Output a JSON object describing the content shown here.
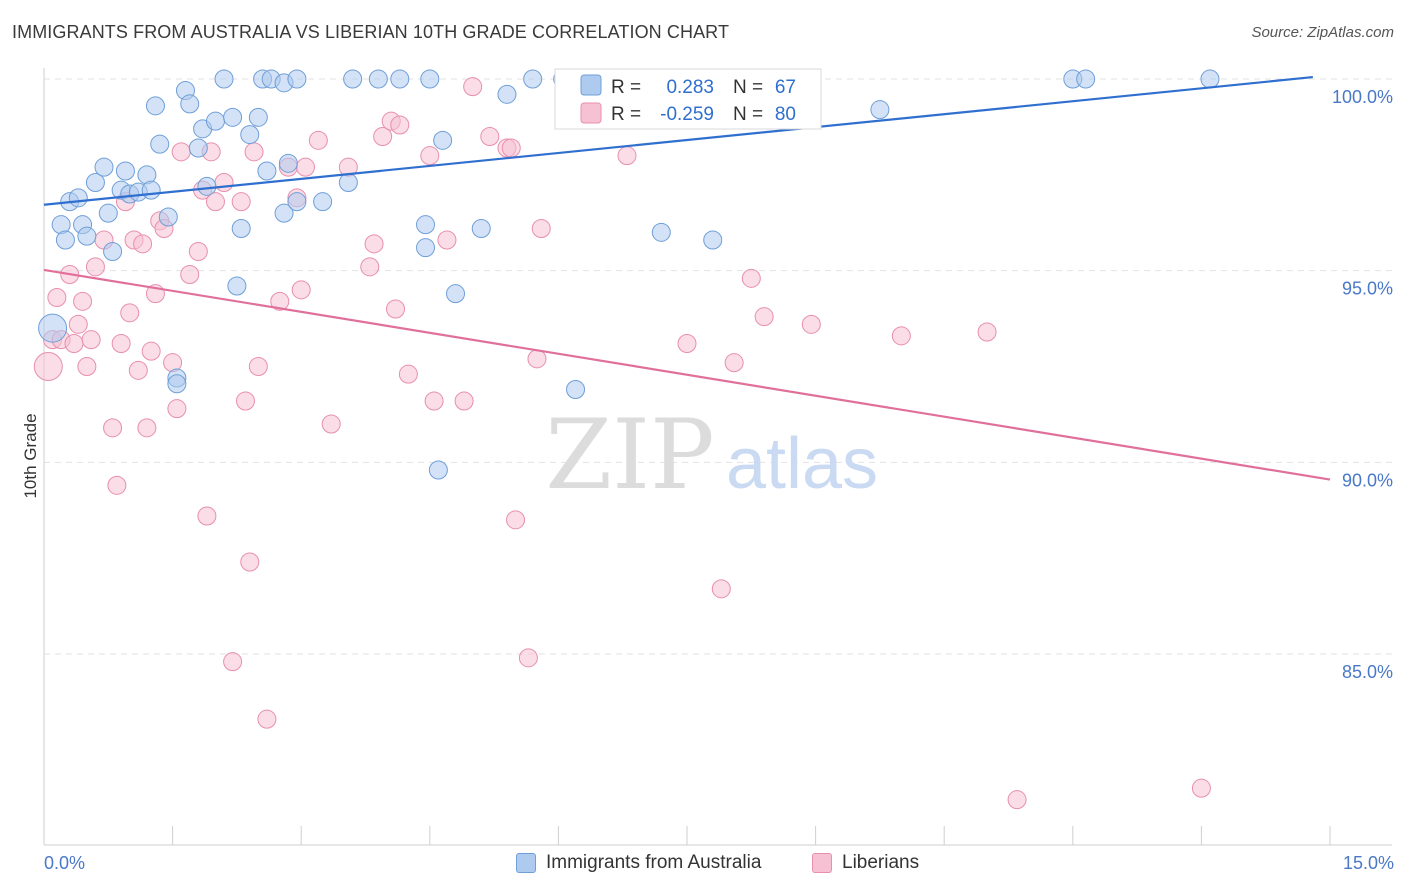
{
  "header": {
    "title": "IMMIGRANTS FROM AUSTRALIA VS LIBERIAN 10TH GRADE CORRELATION CHART",
    "source": "Source: ZipAtlas.com"
  },
  "watermark": {
    "zip": "ZIP",
    "atlas": "atlas"
  },
  "colors": {
    "blue_fill": "#aecbef",
    "blue_stroke": "#6f9fd8",
    "blue_line": "#2f6fcf",
    "pink_fill": "#f6c1d3",
    "pink_stroke": "#e88fae",
    "pink_line": "#e0709a",
    "tick_label": "#4a78c8",
    "grid": "#e2e2e2"
  },
  "stats_legend": {
    "rows": [
      {
        "r_label": "R =",
        "r_value": "0.283",
        "n_label": "N =",
        "n_value": "67"
      },
      {
        "r_label": "R =",
        "r_value": "-0.259",
        "n_label": "N =",
        "n_value": "80"
      }
    ]
  },
  "chart_data": {
    "type": "scatter",
    "title": "IMMIGRANTS FROM AUSTRALIA VS LIBERIAN 10TH GRADE CORRELATION CHART",
    "xlabel": "",
    "ylabel": "10th Grade",
    "xlim": [
      0,
      15
    ],
    "ylim": [
      80,
      100.7
    ],
    "x_tick_labels": [
      "0.0%",
      "15.0%"
    ],
    "y_ticks": [
      85,
      90,
      95,
      100
    ],
    "y_tick_labels": [
      "85.0%",
      "90.0%",
      "95.0%",
      "100.0%"
    ],
    "grid": "horizontal dashed",
    "legend_position": "top-center (stats) and bottom (series)",
    "series": [
      {
        "name": "Immigrants from Australia",
        "color": "#aecbef",
        "trend": {
          "x": [
            0,
            14.8
          ],
          "y": [
            96.72,
            100.05
          ]
        },
        "points": [
          [
            0.1,
            93.5,
            2
          ],
          [
            0.2,
            96.2,
            1
          ],
          [
            0.25,
            95.8,
            1
          ],
          [
            0.3,
            96.8,
            1
          ],
          [
            0.4,
            96.9,
            1
          ],
          [
            0.45,
            96.2,
            1
          ],
          [
            0.5,
            95.9,
            1
          ],
          [
            0.6,
            97.3,
            1
          ],
          [
            0.7,
            97.7,
            1
          ],
          [
            0.75,
            96.5,
            1
          ],
          [
            0.8,
            95.5,
            1
          ],
          [
            0.9,
            97.1,
            1
          ],
          [
            0.95,
            97.6,
            1
          ],
          [
            1.0,
            97.0,
            1
          ],
          [
            1.1,
            97.05,
            1
          ],
          [
            1.2,
            97.5,
            1
          ],
          [
            1.25,
            97.1,
            1
          ],
          [
            1.3,
            99.3,
            1
          ],
          [
            1.35,
            98.3,
            1
          ],
          [
            1.45,
            96.4,
            1
          ],
          [
            1.55,
            92.2,
            1
          ],
          [
            1.55,
            92.05,
            1
          ],
          [
            1.65,
            99.7,
            1
          ],
          [
            1.7,
            99.35,
            1
          ],
          [
            1.8,
            98.2,
            1
          ],
          [
            1.85,
            98.7,
            1
          ],
          [
            1.9,
            97.2,
            1
          ],
          [
            2.0,
            98.9,
            1
          ],
          [
            2.1,
            100.0,
            1
          ],
          [
            2.2,
            99.0,
            1
          ],
          [
            2.25,
            94.6,
            1
          ],
          [
            2.3,
            96.1,
            1
          ],
          [
            2.4,
            98.55,
            1
          ],
          [
            2.5,
            99.0,
            1
          ],
          [
            2.55,
            100.0,
            1
          ],
          [
            2.6,
            97.6,
            1
          ],
          [
            2.65,
            100.0,
            1
          ],
          [
            2.8,
            96.5,
            1
          ],
          [
            2.8,
            99.9,
            1
          ],
          [
            2.85,
            97.8,
            1
          ],
          [
            2.95,
            96.8,
            1
          ],
          [
            2.95,
            100.0,
            1
          ],
          [
            3.25,
            96.8,
            1
          ],
          [
            3.55,
            97.3,
            1
          ],
          [
            3.6,
            100.0,
            1
          ],
          [
            3.9,
            100.0,
            1
          ],
          [
            4.15,
            100.0,
            1
          ],
          [
            4.45,
            95.6,
            1
          ],
          [
            4.45,
            96.2,
            1
          ],
          [
            4.5,
            100.0,
            1
          ],
          [
            4.6,
            89.8,
            1
          ],
          [
            4.65,
            98.4,
            1
          ],
          [
            4.8,
            94.4,
            1
          ],
          [
            5.1,
            96.1,
            1
          ],
          [
            5.4,
            99.6,
            1
          ],
          [
            5.7,
            100.0,
            1
          ],
          [
            6.05,
            100.0,
            1
          ],
          [
            6.2,
            91.9,
            1
          ],
          [
            6.45,
            99.6,
            1
          ],
          [
            7.2,
            96.0,
            1
          ],
          [
            7.8,
            95.8,
            1
          ],
          [
            9.75,
            99.2,
            1
          ],
          [
            12.0,
            100.0,
            1
          ],
          [
            12.15,
            100.0,
            1
          ],
          [
            13.6,
            100.0,
            1
          ]
        ]
      },
      {
        "name": "Liberians",
        "color": "#f6c1d3",
        "trend": {
          "x": [
            0,
            15
          ],
          "y": [
            95.02,
            89.55
          ]
        },
        "points": [
          [
            0.05,
            92.5,
            2
          ],
          [
            0.1,
            93.2,
            1
          ],
          [
            0.15,
            94.3,
            1
          ],
          [
            0.2,
            93.2,
            1
          ],
          [
            0.3,
            94.9,
            1
          ],
          [
            0.35,
            93.1,
            1
          ],
          [
            0.4,
            93.6,
            1
          ],
          [
            0.45,
            94.2,
            1
          ],
          [
            0.5,
            92.5,
            1
          ],
          [
            0.55,
            93.2,
            1
          ],
          [
            0.6,
            95.1,
            1
          ],
          [
            0.7,
            95.8,
            1
          ],
          [
            0.8,
            90.9,
            1
          ],
          [
            0.85,
            89.4,
            1
          ],
          [
            0.9,
            93.1,
            1
          ],
          [
            0.95,
            96.8,
            1
          ],
          [
            1.0,
            93.9,
            1
          ],
          [
            1.05,
            95.8,
            1
          ],
          [
            1.1,
            92.4,
            1
          ],
          [
            1.15,
            95.7,
            1
          ],
          [
            1.2,
            90.9,
            1
          ],
          [
            1.25,
            92.9,
            1
          ],
          [
            1.3,
            94.4,
            1
          ],
          [
            1.35,
            96.3,
            1
          ],
          [
            1.4,
            96.1,
            1
          ],
          [
            1.5,
            92.6,
            1
          ],
          [
            1.55,
            91.4,
            1
          ],
          [
            1.6,
            98.1,
            1
          ],
          [
            1.7,
            94.9,
            1
          ],
          [
            1.8,
            95.5,
            1
          ],
          [
            1.85,
            97.1,
            1
          ],
          [
            1.9,
            88.6,
            1
          ],
          [
            1.95,
            98.1,
            1
          ],
          [
            2.0,
            96.8,
            1
          ],
          [
            2.1,
            97.3,
            1
          ],
          [
            2.2,
            84.8,
            1
          ],
          [
            2.3,
            96.8,
            1
          ],
          [
            2.35,
            91.6,
            1
          ],
          [
            2.4,
            87.4,
            1
          ],
          [
            2.45,
            98.1,
            1
          ],
          [
            2.5,
            92.5,
            1
          ],
          [
            2.6,
            83.3,
            1
          ],
          [
            2.75,
            94.2,
            1
          ],
          [
            2.85,
            97.7,
            1
          ],
          [
            2.95,
            96.9,
            1
          ],
          [
            3.0,
            94.5,
            1
          ],
          [
            3.05,
            97.7,
            1
          ],
          [
            3.2,
            98.4,
            1
          ],
          [
            3.35,
            91.0,
            1
          ],
          [
            3.55,
            97.7,
            1
          ],
          [
            3.8,
            95.1,
            1
          ],
          [
            3.85,
            95.7,
            1
          ],
          [
            3.95,
            98.5,
            1
          ],
          [
            4.05,
            98.9,
            1
          ],
          [
            4.1,
            94.0,
            1
          ],
          [
            4.15,
            98.8,
            1
          ],
          [
            4.25,
            92.3,
            1
          ],
          [
            4.5,
            98.0,
            1
          ],
          [
            4.55,
            91.6,
            1
          ],
          [
            4.7,
            95.8,
            1
          ],
          [
            4.9,
            91.6,
            1
          ],
          [
            5.0,
            99.8,
            1
          ],
          [
            5.2,
            98.5,
            1
          ],
          [
            5.4,
            98.2,
            1
          ],
          [
            5.45,
            98.2,
            1
          ],
          [
            5.5,
            88.5,
            1
          ],
          [
            5.65,
            84.9,
            1
          ],
          [
            5.75,
            92.7,
            1
          ],
          [
            5.8,
            96.1,
            1
          ],
          [
            6.8,
            98.0,
            1
          ],
          [
            7.5,
            93.1,
            1
          ],
          [
            7.9,
            86.7,
            1
          ],
          [
            8.05,
            92.6,
            1
          ],
          [
            8.25,
            94.8,
            1
          ],
          [
            8.4,
            93.8,
            1
          ],
          [
            8.95,
            93.6,
            1
          ],
          [
            10.0,
            93.3,
            1
          ],
          [
            11.0,
            93.4,
            1
          ],
          [
            11.35,
            81.2,
            1
          ],
          [
            13.5,
            81.5,
            1
          ]
        ]
      }
    ]
  }
}
